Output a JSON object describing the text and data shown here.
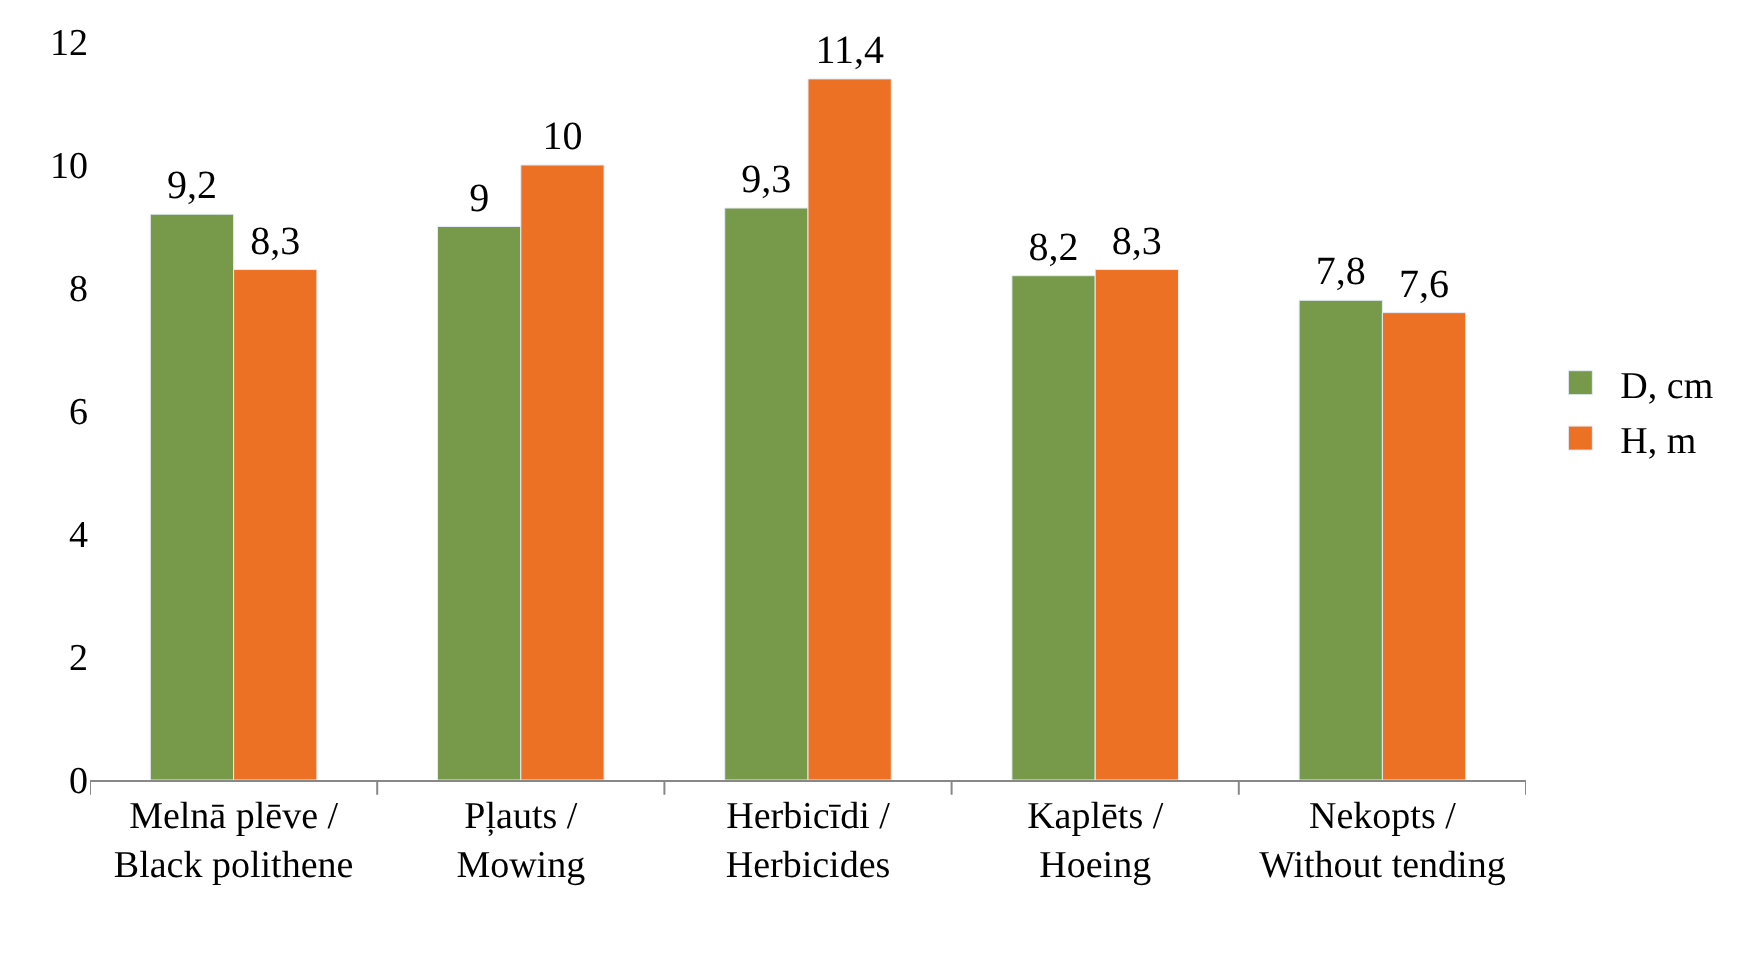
{
  "chart_data": {
    "type": "bar",
    "categories": [
      "Melnā plēve / Black polithene",
      "Pļauts / Mowing",
      "Herbicīdi / Herbicides",
      "Kaplēts / Hoeing",
      "Nekopts / Without tending"
    ],
    "series": [
      {
        "name": "D, cm",
        "color": "#77994a",
        "values": [
          9.2,
          9.0,
          9.3,
          8.2,
          7.8
        ],
        "value_labels": [
          "9,2",
          "9",
          "9,3",
          "8,2",
          "7,8"
        ]
      },
      {
        "name": "H, m",
        "color": "#ed7125",
        "values": [
          8.3,
          10.0,
          11.4,
          8.3,
          7.6
        ],
        "value_labels": [
          "8,3",
          "10",
          "11,4",
          "8,3",
          "7,6"
        ]
      }
    ],
    "ylim": [
      0,
      12
    ],
    "yticks": [
      0,
      2,
      4,
      6,
      8,
      10,
      12
    ],
    "grid": false,
    "legend": "right"
  }
}
